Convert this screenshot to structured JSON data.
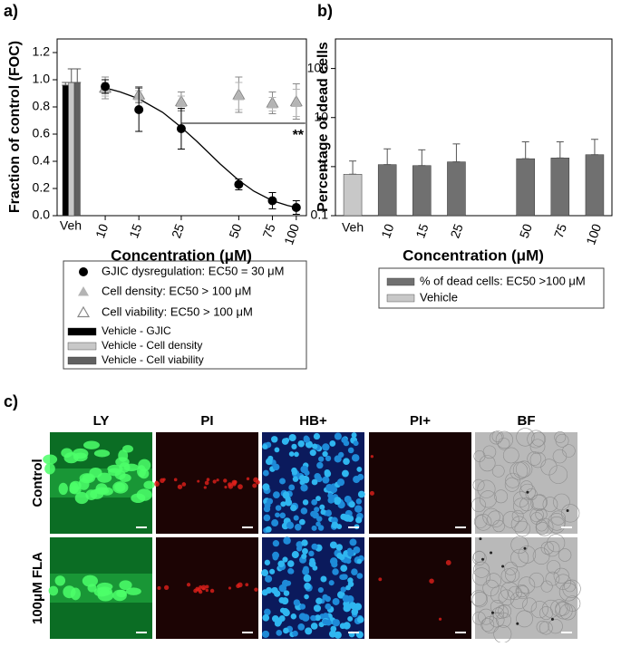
{
  "chart_data": [
    {
      "type": "scatter",
      "panel_label": "a)",
      "ylabel": "Fraction of control (FOC)",
      "xlabel": "Concentration (μM)",
      "xscale": "log",
      "xlim": [
        5.6,
        113
      ],
      "xticks": [
        10,
        15,
        25,
        50,
        75,
        100
      ],
      "ylim": [
        0,
        1.3
      ],
      "yticks": [
        {
          "value": 0,
          "label": "0.0"
        },
        0.2,
        0.4,
        0.6,
        0.8,
        {
          "value": 1,
          "label": "1.0"
        },
        1.2
      ],
      "x": [
        10,
        15,
        25,
        50,
        75,
        100
      ],
      "series": [
        {
          "name": "GJIC dysregulation: EC50 = 30 μM",
          "color": "#000000",
          "marker": "circle",
          "values": [
            0.95,
            0.78,
            0.64,
            0.23,
            0.11,
            0.06
          ],
          "errors": [
            0.05,
            0.16,
            0.15,
            0.04,
            0.06,
            0.05
          ]
        },
        {
          "name": "Cell density: EC50 > 100 μM",
          "color": "#b4b4b4",
          "marker": "triangle-filled",
          "values": [
            0.93,
            0.88,
            0.83,
            0.88,
            0.82,
            0.83
          ],
          "errors": [
            0.05,
            0.04,
            0.05,
            0.1,
            0.05,
            0.1
          ]
        },
        {
          "name": "Cell viability: EC50 > 100 μM",
          "color": "#888888",
          "marker": "triangle-open",
          "values": [
            0.94,
            0.89,
            0.84,
            0.89,
            0.83,
            0.84
          ],
          "errors": [
            0.08,
            0.06,
            0.07,
            0.13,
            0.08,
            0.13
          ]
        }
      ],
      "fit": {
        "color": "#000000",
        "x": [
          10,
          12,
          15,
          20,
          25,
          30,
          40,
          50,
          60,
          75,
          90,
          100
        ],
        "values": [
          0.94,
          0.91,
          0.86,
          0.76,
          0.65,
          0.55,
          0.38,
          0.26,
          0.18,
          0.11,
          0.075,
          0.06
        ]
      },
      "significance": {
        "x": [
          25,
          100
        ],
        "value": 0.68,
        "label": "**"
      },
      "vehicle": {
        "category": "Veh",
        "series": [
          {
            "name": "Vehicle - GJIC",
            "color": "#000000",
            "value": 0.96,
            "error": 0.02
          },
          {
            "name": "Vehicle - Cell density",
            "color": "#c8c8c8",
            "value": 0.98,
            "error": 0.1
          },
          {
            "name": "Vehicle - Cell viability",
            "color": "#606060",
            "value": 0.98,
            "error": 0.1
          }
        ]
      }
    },
    {
      "type": "bar",
      "panel_label": "b)",
      "ylabel": "Percentage of dead cells",
      "xlabel": "Concentration (μM)",
      "yscale": "log",
      "ylim": [
        0.1,
        400
      ],
      "yticks": [
        0.1,
        1,
        10,
        100
      ],
      "categories": [
        "Veh",
        "10",
        "15",
        "25",
        null,
        "50",
        "75",
        "100"
      ],
      "series": [
        {
          "name": "% of dead cells: EC50 >100 μM",
          "color": "#707070",
          "values": [
            null,
            1.1,
            1.05,
            1.25,
            null,
            1.45,
            1.5,
            1.75
          ],
          "errors": [
            null,
            1.2,
            1.15,
            1.65,
            null,
            1.75,
            1.7,
            1.85
          ]
        },
        {
          "name": "Vehicle",
          "color": "#c8c8c8",
          "values": [
            0.7,
            null,
            null,
            null,
            null,
            null,
            null,
            null
          ],
          "errors": [
            0.6,
            null,
            null,
            null,
            null,
            null,
            null,
            null
          ]
        }
      ]
    }
  ],
  "panel_c": {
    "label": "c)",
    "columns": [
      "LY",
      "PI",
      "HB+",
      "PI+",
      "BF"
    ],
    "rows": [
      "Control",
      "100μM FLA"
    ]
  }
}
